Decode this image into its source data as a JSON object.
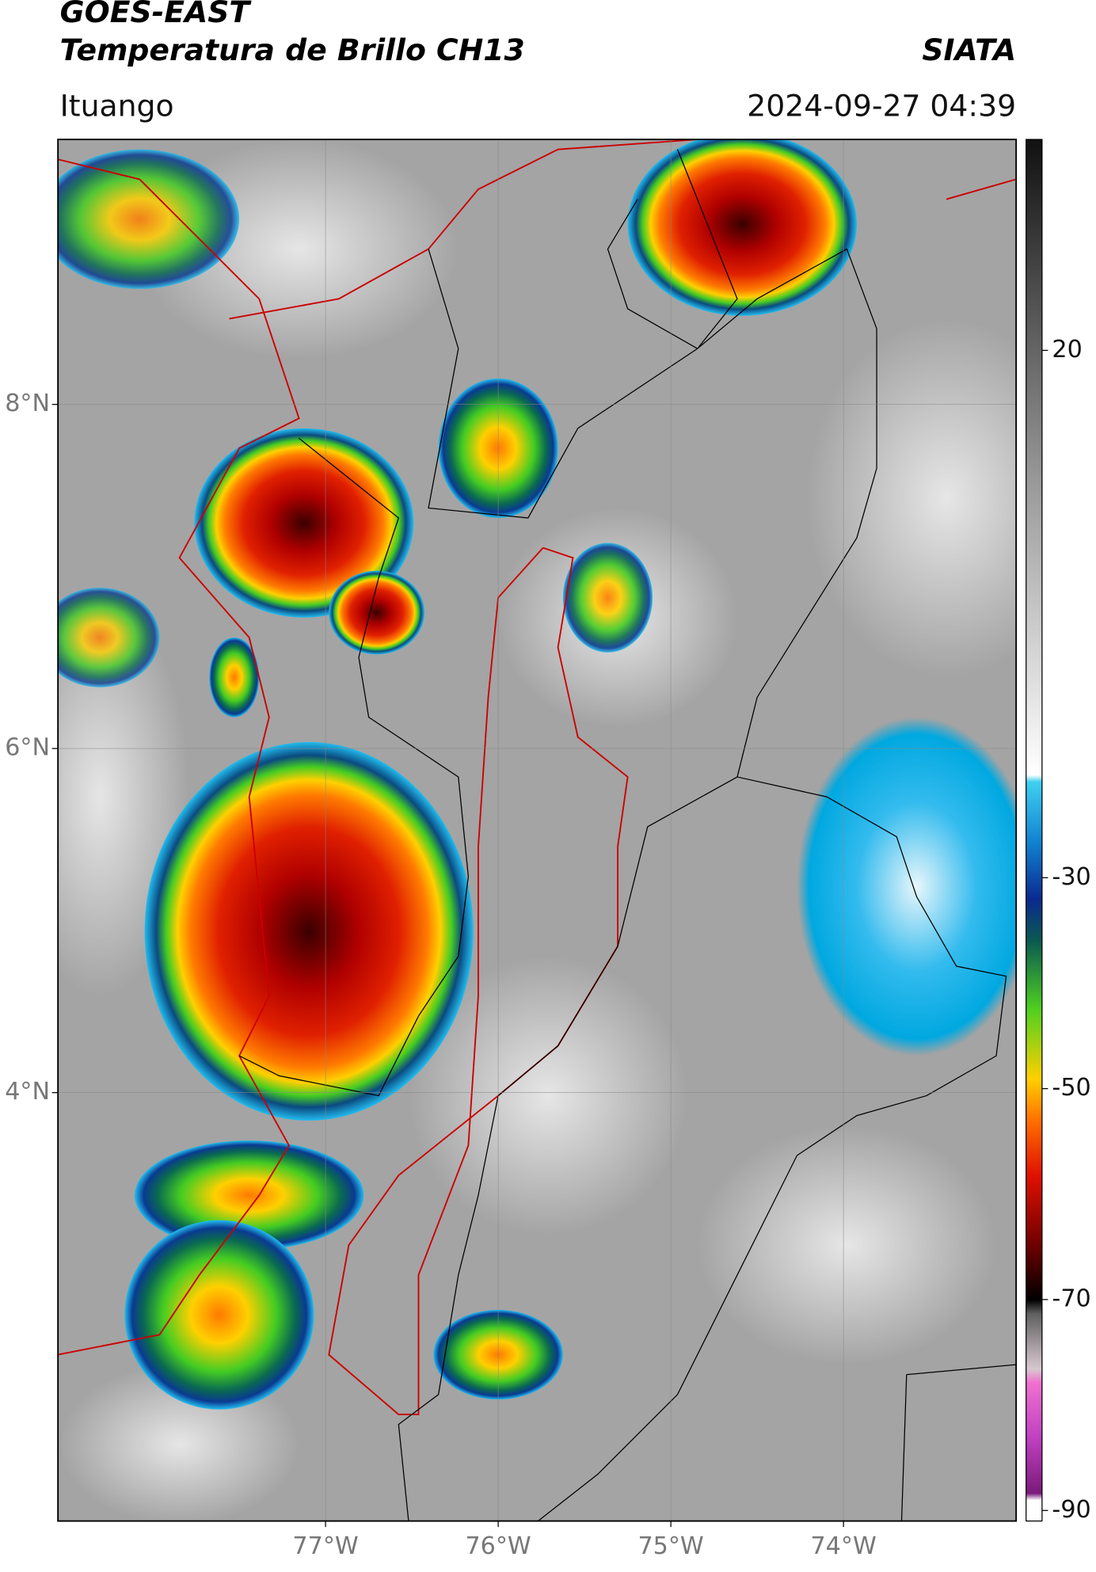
{
  "header": {
    "title": "GOES-EAST",
    "subtitle": "Temperatura de Brillo CH13",
    "source": "SIATA",
    "location": "Ituango",
    "datetime": "2024-09-27 04:39"
  },
  "map": {
    "xlim": [
      -78.55,
      -73.0
    ],
    "ylim": [
      1.51,
      9.54
    ],
    "xticks": [
      {
        "value": -77,
        "label": "77°W"
      },
      {
        "value": -76,
        "label": "76°W"
      },
      {
        "value": -75,
        "label": "75°W"
      },
      {
        "value": -74,
        "label": "74°W"
      }
    ],
    "yticks": [
      {
        "value": 8,
        "label": "8°N"
      },
      {
        "value": 6,
        "label": "6°N"
      },
      {
        "value": 4,
        "label": "4°N"
      }
    ],
    "grid": true
  },
  "colorbar": {
    "lim": [
      -91,
      40
    ],
    "ticks": [
      20,
      -30,
      -50,
      -70,
      -90
    ]
  }
}
